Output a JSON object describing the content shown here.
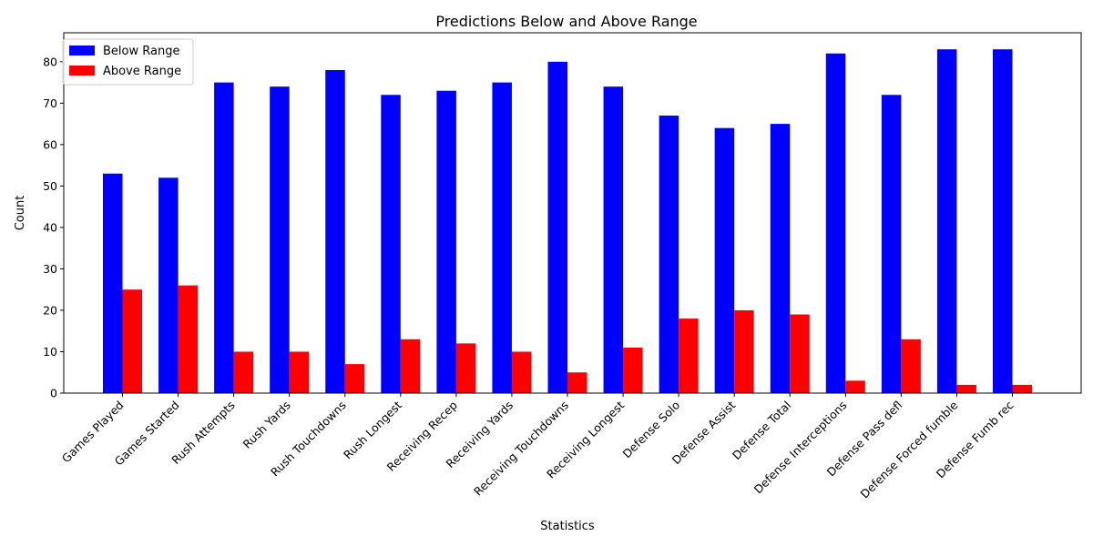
{
  "chart_data": {
    "type": "bar",
    "title": "Predictions Below and Above Range",
    "xlabel": "Statistics",
    "ylabel": "Count",
    "ylim": [
      0,
      87
    ],
    "yticks": [
      0,
      10,
      20,
      30,
      40,
      50,
      60,
      70,
      80
    ],
    "grid": false,
    "legend_position": "top-left",
    "categories": [
      "Games Played",
      "Games Started",
      "Rush Attempts",
      "Rush Yards",
      "Rush Touchdowns",
      "Rush Longest",
      "Receiving Recep",
      "Receiving Yards",
      "Receiving Touchdowns",
      "Receiving Longest",
      "Defense Solo",
      "Defense Assist",
      "Defense Total",
      "Defense Interceptions",
      "Defense Pass defl",
      "Defense Forced fumble",
      "Defense Fumb rec"
    ],
    "series": [
      {
        "name": "Below Range",
        "color": "#0000ff",
        "values": [
          53,
          52,
          75,
          74,
          78,
          72,
          73,
          75,
          80,
          74,
          67,
          64,
          65,
          82,
          72,
          83,
          83
        ]
      },
      {
        "name": "Above Range",
        "color": "#ff0000",
        "values": [
          25,
          26,
          10,
          10,
          7,
          13,
          12,
          10,
          5,
          11,
          18,
          20,
          19,
          3,
          13,
          2,
          2
        ]
      }
    ]
  }
}
